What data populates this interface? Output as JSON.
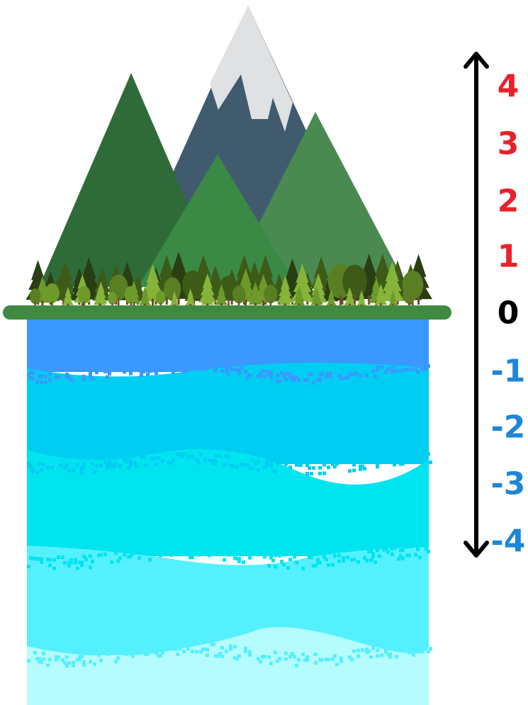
{
  "scale": {
    "levels": [
      {
        "label": "4",
        "color": "#e8212a"
      },
      {
        "label": "3",
        "color": "#e8212a"
      },
      {
        "label": "2",
        "color": "#e8212a"
      },
      {
        "label": "1",
        "color": "#e8212a"
      },
      {
        "label": "0",
        "color": "#000000"
      },
      {
        "label": "-1",
        "color": "#1e86d6"
      },
      {
        "label": "-2",
        "color": "#1e86d6"
      },
      {
        "label": "-3",
        "color": "#1e86d6"
      },
      {
        "label": "-4",
        "color": "#1e86d6"
      }
    ],
    "arrow_color": "#000000"
  },
  "colors": {
    "ground": "#3f8a40",
    "snow": "#dfe1e3",
    "rock": "#405b6e",
    "mountain_left": "#2f6b38",
    "mountain_mid": "#3a8a46",
    "mountain_right": "#4a8a50",
    "water_bands": [
      "#3a98ff",
      "#00cdf2",
      "#00e4f0",
      "#55f0ff",
      "#b5fcff"
    ]
  }
}
